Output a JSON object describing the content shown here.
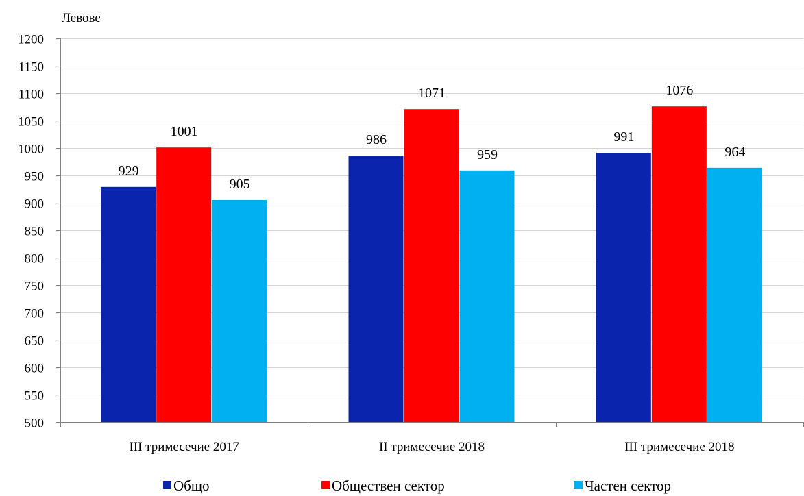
{
  "chart_data": {
    "type": "bar",
    "ylabel": "Левове",
    "ylim": [
      500,
      1200
    ],
    "ystep": 50,
    "grid": true,
    "legend_position": "bottom",
    "categories": [
      "III тримесечие 2017",
      "II тримесечие 2018",
      "III тримесечие 2018"
    ],
    "series": [
      {
        "name": "Общо",
        "color": "#0b24ad",
        "values": [
          929,
          986,
          991
        ]
      },
      {
        "name": "Обществен сектор",
        "color": "#ff0000",
        "values": [
          1001,
          1071,
          1076
        ]
      },
      {
        "name": "Частен сектор",
        "color": "#00b0f0",
        "values": [
          905,
          959,
          964
        ]
      }
    ]
  }
}
